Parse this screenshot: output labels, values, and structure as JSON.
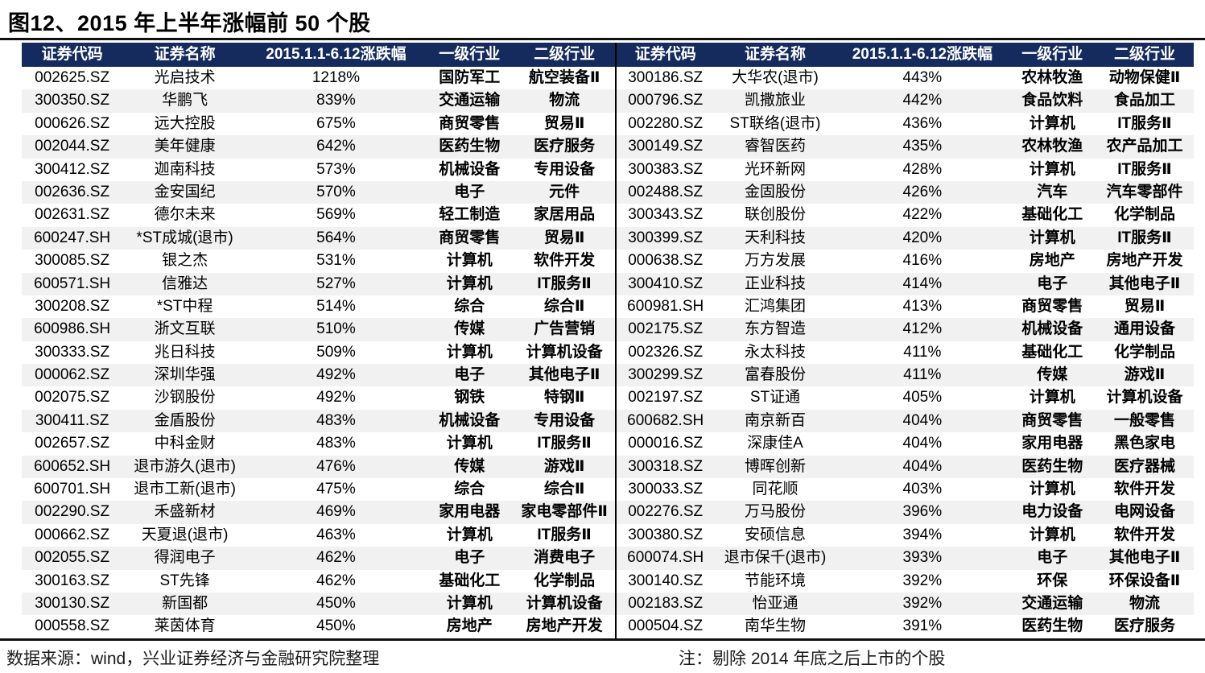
{
  "title": "图12、2015 年上半年涨幅前 50 个股",
  "table": {
    "columns": [
      "证券代码",
      "证券名称",
      "2015.1.1-6.12涨跌幅",
      "一级行业",
      "二级行业"
    ],
    "left_rows": [
      [
        "002625.SZ",
        "光启技术",
        "1218%",
        "国防军工",
        "航空装备Ⅱ"
      ],
      [
        "300350.SZ",
        "华鹏飞",
        "839%",
        "交通运输",
        "物流"
      ],
      [
        "000626.SZ",
        "远大控股",
        "675%",
        "商贸零售",
        "贸易Ⅱ"
      ],
      [
        "002044.SZ",
        "美年健康",
        "642%",
        "医药生物",
        "医疗服务"
      ],
      [
        "300412.SZ",
        "迦南科技",
        "573%",
        "机械设备",
        "专用设备"
      ],
      [
        "002636.SZ",
        "金安国纪",
        "570%",
        "电子",
        "元件"
      ],
      [
        "002631.SZ",
        "德尔未来",
        "569%",
        "轻工制造",
        "家居用品"
      ],
      [
        "600247.SH",
        "*ST成城(退市)",
        "564%",
        "商贸零售",
        "贸易Ⅱ"
      ],
      [
        "300085.SZ",
        "银之杰",
        "531%",
        "计算机",
        "软件开发"
      ],
      [
        "600571.SH",
        "信雅达",
        "527%",
        "计算机",
        "IT服务Ⅱ"
      ],
      [
        "300208.SZ",
        "*ST中程",
        "514%",
        "综合",
        "综合Ⅱ"
      ],
      [
        "600986.SH",
        "浙文互联",
        "510%",
        "传媒",
        "广告营销"
      ],
      [
        "300333.SZ",
        "兆日科技",
        "509%",
        "计算机",
        "计算机设备"
      ],
      [
        "000062.SZ",
        "深圳华强",
        "492%",
        "电子",
        "其他电子Ⅱ"
      ],
      [
        "002075.SZ",
        "沙钢股份",
        "492%",
        "钢铁",
        "特钢Ⅱ"
      ],
      [
        "300411.SZ",
        "金盾股份",
        "483%",
        "机械设备",
        "专用设备"
      ],
      [
        "002657.SZ",
        "中科金财",
        "483%",
        "计算机",
        "IT服务Ⅱ"
      ],
      [
        "600652.SH",
        "退市游久(退市)",
        "476%",
        "传媒",
        "游戏Ⅱ"
      ],
      [
        "600701.SH",
        "退市工新(退市)",
        "475%",
        "综合",
        "综合Ⅱ"
      ],
      [
        "002290.SZ",
        "禾盛新材",
        "469%",
        "家用电器",
        "家电零部件Ⅱ"
      ],
      [
        "000662.SZ",
        "天夏退(退市)",
        "463%",
        "计算机",
        "IT服务Ⅱ"
      ],
      [
        "002055.SZ",
        "得润电子",
        "462%",
        "电子",
        "消费电子"
      ],
      [
        "300163.SZ",
        "ST先锋",
        "462%",
        "基础化工",
        "化学制品"
      ],
      [
        "300130.SZ",
        "新国都",
        "450%",
        "计算机",
        "计算机设备"
      ],
      [
        "000558.SZ",
        "莱茵体育",
        "450%",
        "房地产",
        "房地产开发"
      ]
    ],
    "right_rows": [
      [
        "300186.SZ",
        "大华农(退市)",
        "443%",
        "农林牧渔",
        "动物保健Ⅱ"
      ],
      [
        "000796.SZ",
        "凯撒旅业",
        "442%",
        "食品饮料",
        "食品加工"
      ],
      [
        "002280.SZ",
        "ST联络(退市)",
        "436%",
        "计算机",
        "IT服务Ⅱ"
      ],
      [
        "300149.SZ",
        "睿智医药",
        "435%",
        "农林牧渔",
        "农产品加工"
      ],
      [
        "300383.SZ",
        "光环新网",
        "428%",
        "计算机",
        "IT服务Ⅱ"
      ],
      [
        "002488.SZ",
        "金固股份",
        "426%",
        "汽车",
        "汽车零部件"
      ],
      [
        "300343.SZ",
        "联创股份",
        "422%",
        "基础化工",
        "化学制品"
      ],
      [
        "300399.SZ",
        "天利科技",
        "420%",
        "计算机",
        "IT服务Ⅱ"
      ],
      [
        "000638.SZ",
        "万方发展",
        "416%",
        "房地产",
        "房地产开发"
      ],
      [
        "300410.SZ",
        "正业科技",
        "414%",
        "电子",
        "其他电子Ⅱ"
      ],
      [
        "600981.SH",
        "汇鸿集团",
        "413%",
        "商贸零售",
        "贸易Ⅱ"
      ],
      [
        "002175.SZ",
        "东方智造",
        "412%",
        "机械设备",
        "通用设备"
      ],
      [
        "002326.SZ",
        "永太科技",
        "411%",
        "基础化工",
        "化学制品"
      ],
      [
        "300299.SZ",
        "富春股份",
        "411%",
        "传媒",
        "游戏Ⅱ"
      ],
      [
        "002197.SZ",
        "ST证通",
        "405%",
        "计算机",
        "计算机设备"
      ],
      [
        "600682.SH",
        "南京新百",
        "404%",
        "商贸零售",
        "一般零售"
      ],
      [
        "000016.SZ",
        "深康佳A",
        "404%",
        "家用电器",
        "黑色家电"
      ],
      [
        "300318.SZ",
        "博晖创新",
        "404%",
        "医药生物",
        "医疗器械"
      ],
      [
        "300033.SZ",
        "同花顺",
        "403%",
        "计算机",
        "软件开发"
      ],
      [
        "002276.SZ",
        "万马股份",
        "396%",
        "电力设备",
        "电网设备"
      ],
      [
        "300380.SZ",
        "安硕信息",
        "394%",
        "计算机",
        "软件开发"
      ],
      [
        "600074.SH",
        "退市保千(退市)",
        "393%",
        "电子",
        "其他电子Ⅱ"
      ],
      [
        "300140.SZ",
        "节能环境",
        "392%",
        "环保",
        "环保设备Ⅱ"
      ],
      [
        "002183.SZ",
        "怡亚通",
        "392%",
        "交通运输",
        "物流"
      ],
      [
        "000504.SZ",
        "南华生物",
        "391%",
        "医药生物",
        "医疗服务"
      ]
    ]
  },
  "footer": {
    "source": "数据来源：wind，兴业证券经济与金融研究院整理",
    "note": "注：剔除 2014 年底之后上市的个股"
  },
  "colors": {
    "header_bg": "#152B5E",
    "header_text": "#FFFFFF",
    "stripe": "#F1F1F1",
    "divider": "#000000"
  }
}
